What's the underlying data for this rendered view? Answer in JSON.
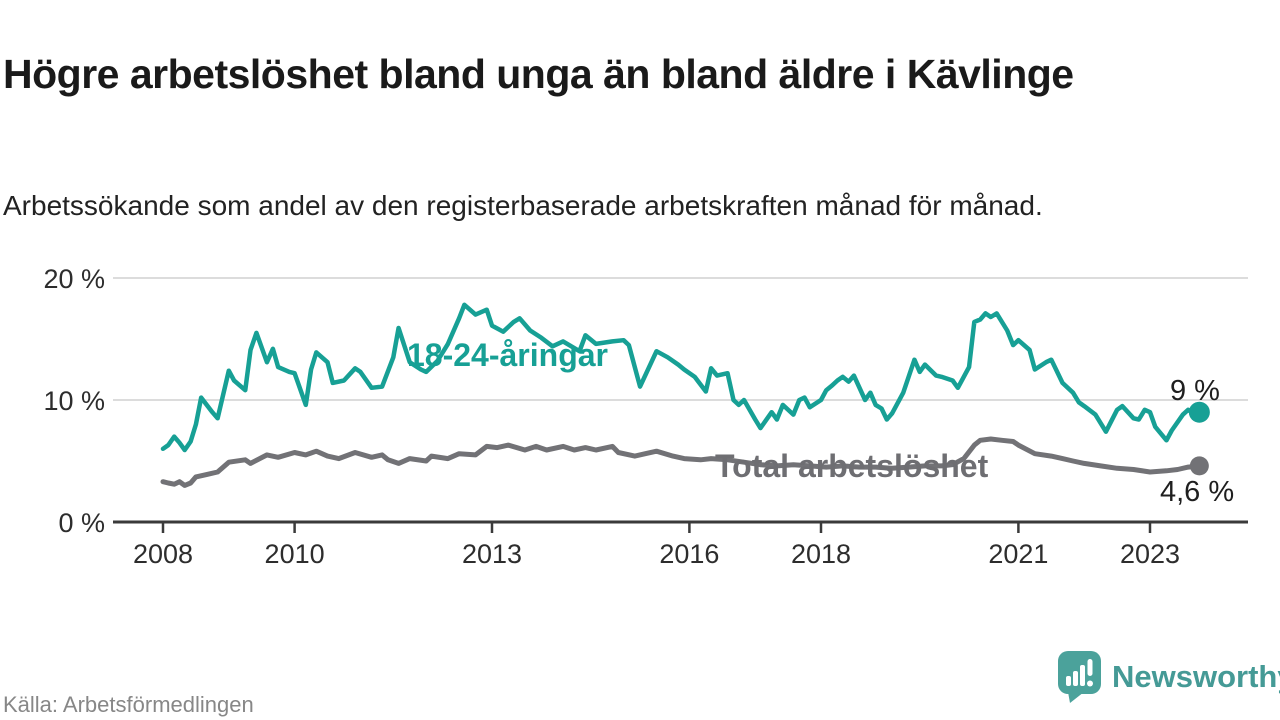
{
  "header": {
    "title": "Högre arbetslöshet bland unga än bland äldre i Kävlinge",
    "subtitle": "Arbetssökande som andel av den registerbaserade arbetskraften månad för månad."
  },
  "footer": {
    "source": "Källa: Arbetsförmedlingen",
    "brand": "Newsworthy",
    "logo_icon": "newsworthy-speech-bubble-bar-chart-icon"
  },
  "colors": {
    "youth_line": "#17a095",
    "total_line": "#727276",
    "grid": "#dcdcdc",
    "axis": "#3a3a3a",
    "title_text": "#1a1a1a",
    "brand_teal": "#4ba29b",
    "brand_text": "#459a96",
    "source_text": "#878787"
  },
  "chart_data": {
    "type": "line",
    "unit": "%",
    "grid": "horizontal-only",
    "legend_position": "inline-labels-on-lines",
    "x_axis": {
      "ticks": [
        2008,
        2010,
        2013,
        2016,
        2018,
        2021,
        2023
      ],
      "range_years": [
        2007.25,
        2024.5
      ]
    },
    "y_axis": {
      "ticks": [
        {
          "value": 0,
          "label": "0 %"
        },
        {
          "value": 10,
          "label": "10 %"
        },
        {
          "value": 20,
          "label": "20 %"
        }
      ],
      "range": [
        0,
        20
      ]
    },
    "series": [
      {
        "name": "18-24-åringar",
        "color": "#17a095",
        "end_label": "9 %",
        "last_value": 9.0,
        "points": [
          [
            2008.0,
            6.0
          ],
          [
            2008.08,
            6.3
          ],
          [
            2008.17,
            7.0
          ],
          [
            2008.25,
            6.5
          ],
          [
            2008.33,
            5.9
          ],
          [
            2008.42,
            6.6
          ],
          [
            2008.5,
            8.0
          ],
          [
            2008.58,
            10.2
          ],
          [
            2008.75,
            9.0
          ],
          [
            2008.83,
            8.5
          ],
          [
            2009.0,
            12.4
          ],
          [
            2009.08,
            11.6
          ],
          [
            2009.25,
            10.8
          ],
          [
            2009.33,
            14.1
          ],
          [
            2009.42,
            15.5
          ],
          [
            2009.58,
            13.1
          ],
          [
            2009.67,
            14.2
          ],
          [
            2009.75,
            12.7
          ],
          [
            2009.92,
            12.3
          ],
          [
            2010.0,
            12.2
          ],
          [
            2010.17,
            9.6
          ],
          [
            2010.25,
            12.5
          ],
          [
            2010.33,
            13.9
          ],
          [
            2010.5,
            13.1
          ],
          [
            2010.58,
            11.4
          ],
          [
            2010.75,
            11.6
          ],
          [
            2010.92,
            12.6
          ],
          [
            2011.0,
            12.3
          ],
          [
            2011.17,
            11.0
          ],
          [
            2011.33,
            11.1
          ],
          [
            2011.5,
            13.5
          ],
          [
            2011.58,
            15.9
          ],
          [
            2011.75,
            13.1
          ],
          [
            2011.92,
            12.5
          ],
          [
            2012.0,
            12.3
          ],
          [
            2012.17,
            13.2
          ],
          [
            2012.33,
            14.6
          ],
          [
            2012.5,
            16.7
          ],
          [
            2012.58,
            17.8
          ],
          [
            2012.75,
            17.0
          ],
          [
            2012.92,
            17.4
          ],
          [
            2013.0,
            16.1
          ],
          [
            2013.17,
            15.6
          ],
          [
            2013.33,
            16.4
          ],
          [
            2013.42,
            16.7
          ],
          [
            2013.58,
            15.7
          ],
          [
            2013.75,
            15.1
          ],
          [
            2013.92,
            14.4
          ],
          [
            2014.08,
            14.8
          ],
          [
            2014.33,
            14.0
          ],
          [
            2014.42,
            15.3
          ],
          [
            2014.58,
            14.6
          ],
          [
            2014.83,
            14.8
          ],
          [
            2015.0,
            14.9
          ],
          [
            2015.08,
            14.5
          ],
          [
            2015.25,
            11.1
          ],
          [
            2015.5,
            14.0
          ],
          [
            2015.67,
            13.5
          ],
          [
            2015.83,
            12.9
          ],
          [
            2015.92,
            12.5
          ],
          [
            2016.08,
            11.9
          ],
          [
            2016.25,
            10.7
          ],
          [
            2016.33,
            12.6
          ],
          [
            2016.42,
            12.0
          ],
          [
            2016.58,
            12.2
          ],
          [
            2016.67,
            10.0
          ],
          [
            2016.75,
            9.6
          ],
          [
            2016.83,
            10.0
          ],
          [
            2017.0,
            8.4
          ],
          [
            2017.08,
            7.7
          ],
          [
            2017.25,
            9.0
          ],
          [
            2017.33,
            8.4
          ],
          [
            2017.42,
            9.6
          ],
          [
            2017.58,
            8.8
          ],
          [
            2017.67,
            10.0
          ],
          [
            2017.75,
            10.2
          ],
          [
            2017.83,
            9.4
          ],
          [
            2018.0,
            10.0
          ],
          [
            2018.08,
            10.8
          ],
          [
            2018.17,
            11.2
          ],
          [
            2018.25,
            11.6
          ],
          [
            2018.33,
            11.9
          ],
          [
            2018.42,
            11.5
          ],
          [
            2018.5,
            12.0
          ],
          [
            2018.67,
            10.0
          ],
          [
            2018.75,
            10.6
          ],
          [
            2018.83,
            9.6
          ],
          [
            2018.92,
            9.3
          ],
          [
            2019.0,
            8.4
          ],
          [
            2019.08,
            8.9
          ],
          [
            2019.25,
            10.6
          ],
          [
            2019.42,
            13.3
          ],
          [
            2019.5,
            12.3
          ],
          [
            2019.58,
            12.9
          ],
          [
            2019.75,
            12.0
          ],
          [
            2019.83,
            11.9
          ],
          [
            2020.0,
            11.6
          ],
          [
            2020.08,
            11.0
          ],
          [
            2020.25,
            12.7
          ],
          [
            2020.33,
            16.4
          ],
          [
            2020.42,
            16.6
          ],
          [
            2020.5,
            17.1
          ],
          [
            2020.58,
            16.8
          ],
          [
            2020.67,
            17.1
          ],
          [
            2020.83,
            15.7
          ],
          [
            2020.92,
            14.5
          ],
          [
            2021.0,
            14.9
          ],
          [
            2021.17,
            14.1
          ],
          [
            2021.25,
            12.5
          ],
          [
            2021.42,
            13.1
          ],
          [
            2021.5,
            13.3
          ],
          [
            2021.67,
            11.4
          ],
          [
            2021.83,
            10.6
          ],
          [
            2021.92,
            9.8
          ],
          [
            2022.0,
            9.5
          ],
          [
            2022.17,
            8.8
          ],
          [
            2022.33,
            7.4
          ],
          [
            2022.5,
            9.2
          ],
          [
            2022.58,
            9.5
          ],
          [
            2022.75,
            8.5
          ],
          [
            2022.83,
            8.4
          ],
          [
            2022.92,
            9.2
          ],
          [
            2023.0,
            9.0
          ],
          [
            2023.08,
            7.8
          ],
          [
            2023.25,
            6.7
          ],
          [
            2023.33,
            7.5
          ],
          [
            2023.5,
            8.8
          ],
          [
            2023.58,
            9.2
          ],
          [
            2023.67,
            8.9
          ],
          [
            2023.75,
            9.0
          ]
        ]
      },
      {
        "name": "Total arbetslöshet",
        "color": "#727276",
        "end_label": "4,6 %",
        "last_value": 4.6,
        "points": [
          [
            2008.0,
            3.3
          ],
          [
            2008.08,
            3.2
          ],
          [
            2008.17,
            3.1
          ],
          [
            2008.25,
            3.3
          ],
          [
            2008.33,
            3.0
          ],
          [
            2008.42,
            3.2
          ],
          [
            2008.5,
            3.7
          ],
          [
            2008.67,
            3.9
          ],
          [
            2008.83,
            4.1
          ],
          [
            2009.0,
            4.9
          ],
          [
            2009.25,
            5.1
          ],
          [
            2009.33,
            4.8
          ],
          [
            2009.58,
            5.5
          ],
          [
            2009.75,
            5.3
          ],
          [
            2010.0,
            5.7
          ],
          [
            2010.17,
            5.5
          ],
          [
            2010.33,
            5.8
          ],
          [
            2010.5,
            5.4
          ],
          [
            2010.67,
            5.2
          ],
          [
            2010.92,
            5.7
          ],
          [
            2011.17,
            5.3
          ],
          [
            2011.33,
            5.5
          ],
          [
            2011.42,
            5.1
          ],
          [
            2011.58,
            4.8
          ],
          [
            2011.75,
            5.2
          ],
          [
            2012.0,
            5.0
          ],
          [
            2012.08,
            5.4
          ],
          [
            2012.33,
            5.2
          ],
          [
            2012.5,
            5.6
          ],
          [
            2012.75,
            5.5
          ],
          [
            2012.92,
            6.2
          ],
          [
            2013.08,
            6.1
          ],
          [
            2013.25,
            6.3
          ],
          [
            2013.5,
            5.9
          ],
          [
            2013.67,
            6.2
          ],
          [
            2013.83,
            5.9
          ],
          [
            2014.08,
            6.2
          ],
          [
            2014.25,
            5.9
          ],
          [
            2014.42,
            6.1
          ],
          [
            2014.58,
            5.9
          ],
          [
            2014.83,
            6.2
          ],
          [
            2014.92,
            5.7
          ],
          [
            2015.17,
            5.4
          ],
          [
            2015.33,
            5.6
          ],
          [
            2015.5,
            5.8
          ],
          [
            2015.75,
            5.4
          ],
          [
            2015.92,
            5.2
          ],
          [
            2016.17,
            5.1
          ],
          [
            2016.33,
            5.2
          ],
          [
            2016.58,
            5.1
          ],
          [
            2016.83,
            4.9
          ],
          [
            2017.08,
            4.7
          ],
          [
            2017.33,
            4.6
          ],
          [
            2017.58,
            4.7
          ],
          [
            2017.83,
            4.6
          ],
          [
            2018.08,
            4.5
          ],
          [
            2018.33,
            4.6
          ],
          [
            2018.58,
            4.5
          ],
          [
            2018.83,
            4.5
          ],
          [
            2019.08,
            4.4
          ],
          [
            2019.33,
            4.5
          ],
          [
            2019.58,
            4.6
          ],
          [
            2019.83,
            4.6
          ],
          [
            2020.0,
            4.7
          ],
          [
            2020.17,
            5.2
          ],
          [
            2020.33,
            6.3
          ],
          [
            2020.42,
            6.7
          ],
          [
            2020.58,
            6.8
          ],
          [
            2020.75,
            6.7
          ],
          [
            2020.92,
            6.6
          ],
          [
            2021.0,
            6.3
          ],
          [
            2021.25,
            5.6
          ],
          [
            2021.5,
            5.4
          ],
          [
            2021.67,
            5.2
          ],
          [
            2021.83,
            5.0
          ],
          [
            2022.0,
            4.8
          ],
          [
            2022.25,
            4.6
          ],
          [
            2022.5,
            4.4
          ],
          [
            2022.75,
            4.3
          ],
          [
            2023.0,
            4.1
          ],
          [
            2023.25,
            4.2
          ],
          [
            2023.42,
            4.3
          ],
          [
            2023.58,
            4.5
          ],
          [
            2023.75,
            4.6
          ]
        ]
      }
    ]
  }
}
